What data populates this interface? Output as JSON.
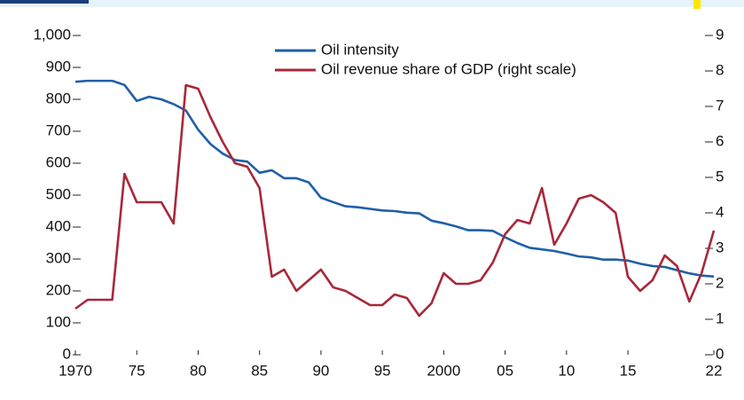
{
  "chart_data": {
    "type": "line",
    "x": [
      1970,
      1971,
      1972,
      1973,
      1974,
      1975,
      1976,
      1977,
      1978,
      1979,
      1980,
      1981,
      1982,
      1983,
      1984,
      1985,
      1986,
      1987,
      1988,
      1989,
      1990,
      1991,
      1992,
      1993,
      1994,
      1995,
      1996,
      1997,
      1998,
      1999,
      2000,
      2001,
      2002,
      2003,
      2004,
      2005,
      2006,
      2007,
      2008,
      2009,
      2010,
      2011,
      2012,
      2013,
      2014,
      2015,
      2016,
      2017,
      2018,
      2019,
      2020,
      2021,
      2022
    ],
    "series": [
      {
        "name": "Oil intensity",
        "color": "#1f5fa8",
        "values": [
          855,
          858,
          858,
          858,
          845,
          795,
          808,
          800,
          785,
          765,
          705,
          660,
          630,
          610,
          605,
          570,
          578,
          553,
          553,
          540,
          492,
          478,
          465,
          462,
          457,
          452,
          450,
          445,
          443,
          420,
          412,
          402,
          390,
          390,
          388,
          368,
          350,
          335,
          330,
          325,
          317,
          308,
          305,
          298,
          298,
          295,
          285,
          278,
          275,
          265,
          255,
          248,
          245
        ]
      },
      {
        "name": "Oil revenue share of GDP (right scale)",
        "color": "#a8283a",
        "axis": "y2",
        "values": [
          1.3,
          1.55,
          1.55,
          1.55,
          5.1,
          4.3,
          4.3,
          4.3,
          3.7,
          7.6,
          7.5,
          6.7,
          6.0,
          5.4,
          5.3,
          4.7,
          2.2,
          2.4,
          1.8,
          2.1,
          2.4,
          1.9,
          1.8,
          1.6,
          1.4,
          1.4,
          1.7,
          1.6,
          1.1,
          1.45,
          2.3,
          2.0,
          2.0,
          2.1,
          2.6,
          3.4,
          3.8,
          3.7,
          4.7,
          3.1,
          3.7,
          4.4,
          4.5,
          4.3,
          4.0,
          2.2,
          1.8,
          2.1,
          2.8,
          2.5,
          1.5,
          2.3,
          3.5
        ]
      }
    ],
    "xlim": [
      1970,
      2022
    ],
    "xticks": [
      1970,
      {
        "value": 1975,
        "label": "75"
      },
      {
        "value": 1980,
        "label": "80"
      },
      {
        "value": 1985,
        "label": "85"
      },
      {
        "value": 1990,
        "label": "90"
      },
      {
        "value": 1995,
        "label": "95"
      },
      2000,
      {
        "value": 2005,
        "label": "05"
      },
      {
        "value": 2010,
        "label": "10"
      },
      {
        "value": 2015,
        "label": "15"
      },
      {
        "value": 2022,
        "label": "22"
      }
    ],
    "ylim": [
      0,
      1000
    ],
    "yticks": [
      0,
      100,
      200,
      300,
      400,
      500,
      600,
      700,
      800,
      900,
      {
        "value": 1000,
        "label": "1,000"
      }
    ],
    "y2lim": [
      0,
      9
    ],
    "y2ticks": [
      0,
      1,
      2,
      3,
      4,
      5,
      6,
      7,
      8,
      9
    ],
    "legend": "upper center"
  }
}
